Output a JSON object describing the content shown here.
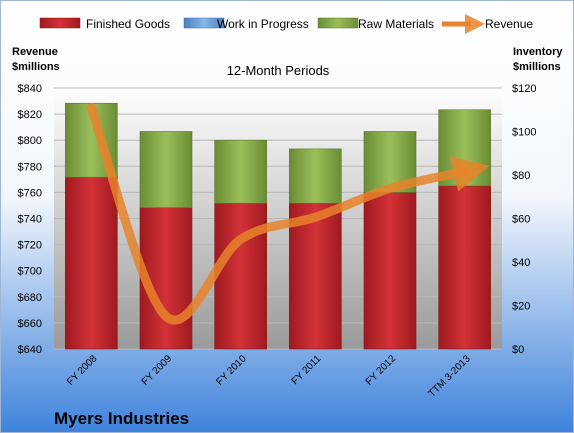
{
  "chart_data": {
    "type": "bar",
    "subtitle": "12-Month Periods",
    "company": "Myers Industries",
    "categories": [
      "FY 2008",
      "FY 2009",
      "FY 2010",
      "FY 2011",
      "FY 2012",
      "TTM 3-2013"
    ],
    "left_axis": {
      "label_line1": "Revenue",
      "label_line2": "$millions",
      "min": 640,
      "max": 840,
      "step": 20,
      "tick_labels": [
        "$640",
        "$660",
        "$680",
        "$700",
        "$720",
        "$740",
        "$760",
        "$780",
        "$800",
        "$820",
        "$840"
      ]
    },
    "right_axis": {
      "label_line1": "Inventory",
      "label_line2": "$millions",
      "min": 0,
      "max": 120,
      "step": 20,
      "tick_labels": [
        "$0",
        "$20",
        "$40",
        "$60",
        "$80",
        "$100",
        "$120"
      ]
    },
    "series": [
      {
        "name": "Finished Goods",
        "type": "stacked-bar",
        "axis": "right",
        "color": "#c0272d",
        "values": [
          79,
          65,
          67,
          67,
          72,
          75
        ]
      },
      {
        "name": "Work in Progress",
        "type": "stacked-bar",
        "axis": "right",
        "color": "#6f9fd8",
        "values": [
          0,
          0,
          0,
          0,
          0,
          0
        ]
      },
      {
        "name": "Raw Materials",
        "type": "stacked-bar",
        "axis": "right",
        "color": "#8db050",
        "values": [
          34,
          35,
          29,
          25,
          28,
          35
        ]
      },
      {
        "name": "Revenue",
        "type": "line",
        "axis": "left",
        "color": "#e8832a",
        "values": [
          825,
          665,
          724,
          741,
          763,
          776
        ]
      }
    ],
    "legend_position": "top",
    "grid": true
  }
}
